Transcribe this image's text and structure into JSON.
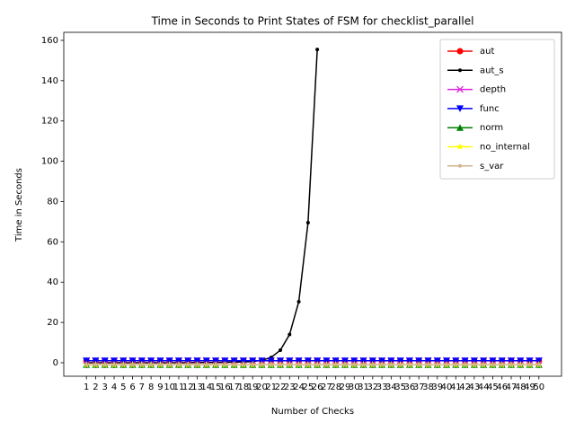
{
  "chart_data": {
    "type": "line",
    "title": "Time in Seconds to Print States of FSM for checklist_parallel",
    "x_label": "Number of Checks",
    "y_label": "Time in Seconds",
    "categories": [
      "1",
      "2",
      "3",
      "4",
      "5",
      "6",
      "7",
      "8",
      "9",
      "10",
      "11",
      "12",
      "13",
      "14",
      "15",
      "16",
      "17",
      "18",
      "19",
      "20",
      "21",
      "22",
      "23",
      "24",
      "25",
      "26",
      "27",
      "28",
      "29",
      "30",
      "31",
      "32",
      "33",
      "34",
      "35",
      "36",
      "37",
      "38",
      "39",
      "40",
      "41",
      "42",
      "43",
      "44",
      "45",
      "46",
      "47",
      "48",
      "49",
      "50"
    ],
    "ylim": [
      -6.7,
      164
    ],
    "yticks": [
      0,
      20,
      40,
      60,
      80,
      100,
      120,
      140,
      160
    ],
    "grid": false,
    "legend": "upper right",
    "series": [
      {
        "name": "aut",
        "color": "#ff0000",
        "marker": "o",
        "values": [
          1,
          1,
          1,
          1,
          1,
          1,
          1,
          1,
          1,
          1,
          1,
          1,
          1,
          1,
          1,
          1,
          1,
          1,
          1,
          1,
          1,
          1,
          1,
          1,
          1,
          1,
          1,
          1,
          1,
          1,
          1,
          1,
          1,
          1,
          1,
          1,
          1,
          1,
          1,
          1,
          1,
          1,
          1,
          1,
          1,
          1,
          1,
          1,
          1,
          1
        ]
      },
      {
        "name": "aut_s",
        "color": "#000000",
        "marker": ".",
        "values": [
          0,
          0,
          0,
          0,
          0,
          0,
          0,
          0,
          0,
          0,
          0,
          0,
          0.1,
          0.1,
          0.1,
          0.2,
          0.3,
          0.4,
          0.6,
          1.2,
          2.6,
          6.2,
          14,
          30.3,
          69.5,
          155.5,
          null,
          null,
          null,
          null,
          null,
          null,
          null,
          null,
          null,
          null,
          null,
          null,
          null,
          null,
          null,
          null,
          null,
          null,
          null,
          null,
          null,
          null,
          null,
          null
        ]
      },
      {
        "name": "depth",
        "color": "#dd22dd",
        "marker": "x",
        "values": [
          1,
          1,
          1,
          1,
          1,
          1,
          1,
          1,
          1,
          1,
          1,
          1,
          1,
          1,
          1,
          1,
          1,
          1,
          1,
          1,
          1,
          1,
          1,
          1,
          1,
          1,
          1,
          1,
          1,
          1,
          1,
          1,
          1,
          1,
          1,
          1,
          1,
          1,
          1,
          1,
          1,
          1,
          1,
          1,
          1,
          1,
          1,
          1,
          1,
          1
        ]
      },
      {
        "name": "func",
        "color": "#0000ff",
        "marker": "v",
        "values": [
          1,
          1,
          1,
          1,
          1,
          1,
          1,
          1,
          1,
          1,
          1,
          1,
          1,
          1,
          1,
          1,
          1,
          1,
          1,
          1,
          1,
          1,
          1,
          1,
          1,
          1,
          1,
          1,
          1,
          1,
          1,
          1,
          1,
          1,
          1,
          1,
          1,
          1,
          1,
          1,
          1,
          1,
          1,
          1,
          1,
          1,
          1,
          1,
          1,
          1
        ]
      },
      {
        "name": "norm",
        "color": "#008000",
        "marker": "^",
        "values": [
          -1,
          -1,
          -1,
          -1,
          -1,
          -1,
          -1,
          -1,
          -1,
          -1,
          -1,
          -1,
          -1,
          -1,
          -1,
          -1,
          -1,
          -1,
          -1,
          -1,
          -1,
          -1,
          -1,
          -1,
          -1,
          -1,
          -1,
          -1,
          -1,
          -1,
          -1,
          -1,
          -1,
          -1,
          -1,
          -1,
          -1,
          -1,
          -1,
          -1,
          -1,
          -1,
          -1,
          -1,
          -1,
          -1,
          -1,
          -1,
          -1,
          -1
        ]
      },
      {
        "name": "no_internal",
        "color": "#ffff00",
        "marker": "*",
        "values": [
          -1,
          -1,
          -1,
          -1,
          -1,
          -1,
          -1,
          -1,
          -1,
          -1,
          -1,
          -1,
          -1,
          -1,
          -1,
          -1,
          -1,
          -1,
          -1,
          -1,
          -1,
          -1,
          -1,
          -1,
          -1,
          -1,
          -1,
          -1,
          -1,
          -1,
          -1,
          -1,
          -1,
          -1,
          -1,
          -1,
          -1,
          -1,
          -1,
          -1,
          -1,
          -1,
          -1,
          -1,
          -1,
          -1,
          -1,
          -1,
          -1,
          -1
        ]
      },
      {
        "name": "s_var",
        "color": "#d2b48c",
        "marker": ".",
        "values": [
          -1,
          -1,
          -1,
          -1,
          -1,
          -1,
          -1,
          -1,
          -1,
          -1,
          -1,
          -1,
          -1,
          -1,
          -1,
          -1,
          -1,
          -1,
          -1,
          -1,
          -1,
          -1,
          -1,
          -1,
          -1,
          -1,
          -1,
          -1,
          -1,
          -1,
          -1,
          -1,
          -1,
          -1,
          -1,
          -1,
          -1,
          -1,
          -1,
          -1,
          -1,
          -1,
          -1,
          -1,
          -1,
          -1,
          -1,
          -1,
          -1,
          -1
        ]
      }
    ]
  }
}
